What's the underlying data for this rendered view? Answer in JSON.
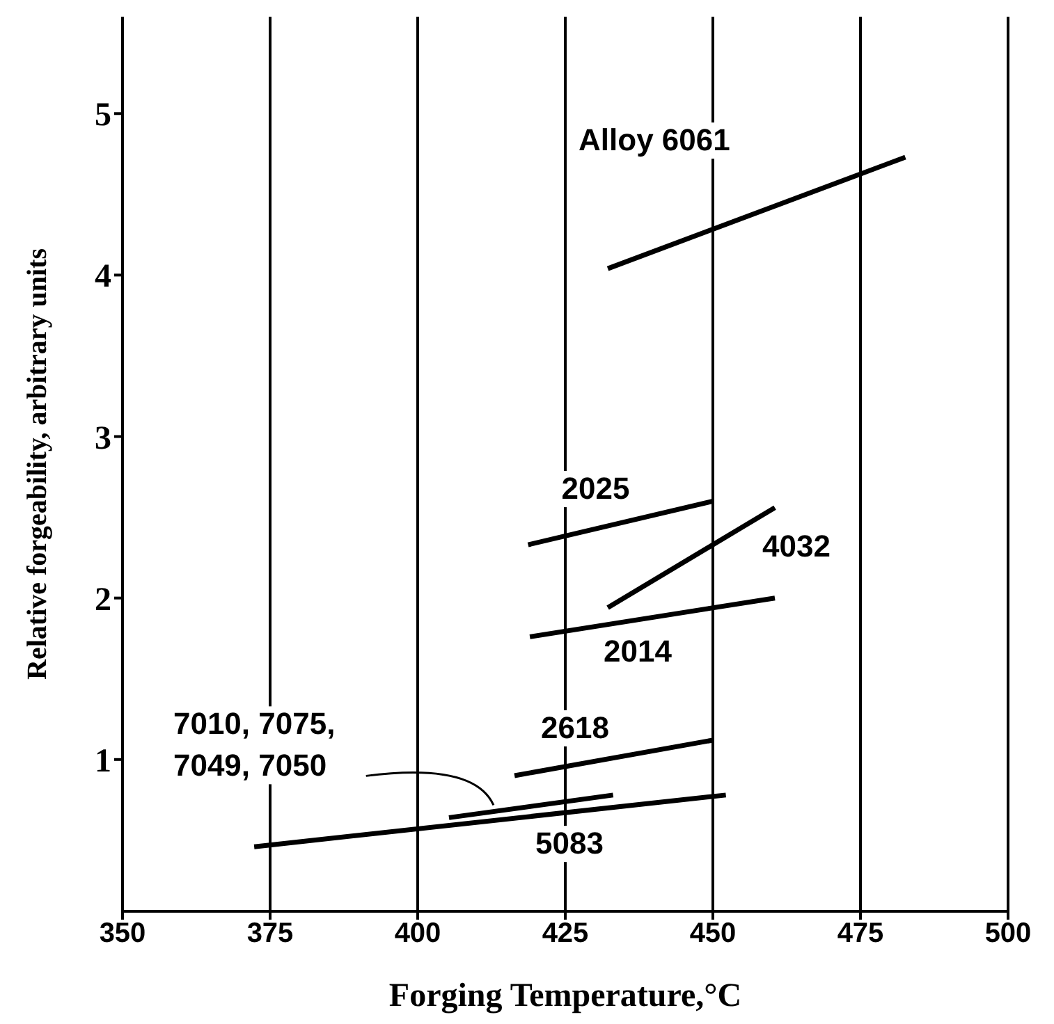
{
  "chart_data": {
    "type": "line",
    "xlabel": "Forging Temperature,°C",
    "ylabel": "Relative forgeability, arbitrary units",
    "xlim": [
      350,
      500
    ],
    "xticks": [
      350,
      375,
      400,
      425,
      450,
      475,
      500
    ],
    "ylim": [
      0.06,
      5.6
    ],
    "yticks": [
      1,
      2,
      3,
      4,
      5
    ],
    "grid": "x",
    "legend": false,
    "marker": "none",
    "line_style": "solid",
    "series": [
      {
        "name": "Alloy 6061",
        "color": "#000000",
        "x": [
          432.2,
          482.6
        ],
        "values": [
          4.04,
          4.73
        ]
      },
      {
        "name": "2025",
        "color": "#000000",
        "x": [
          418.7,
          450
        ],
        "values": [
          2.33,
          2.6
        ]
      },
      {
        "name": "4032",
        "color": "#000000",
        "x": [
          432.2,
          460.5
        ],
        "values": [
          1.94,
          2.56
        ]
      },
      {
        "name": "2014",
        "color": "#000000",
        "x": [
          419,
          460.5
        ],
        "values": [
          1.76,
          2.0
        ]
      },
      {
        "name": "2618",
        "color": "#000000",
        "x": [
          416.4,
          450
        ],
        "values": [
          0.9,
          1.12
        ]
      },
      {
        "name": "7010, 7075,\n7049, 7050",
        "color": "#000000",
        "x": [
          405.3,
          433.1
        ],
        "values": [
          0.64,
          0.78
        ]
      },
      {
        "name": "5083",
        "color": "#000000",
        "x": [
          372.3,
          452.2
        ],
        "values": [
          0.46,
          0.78
        ]
      }
    ]
  }
}
